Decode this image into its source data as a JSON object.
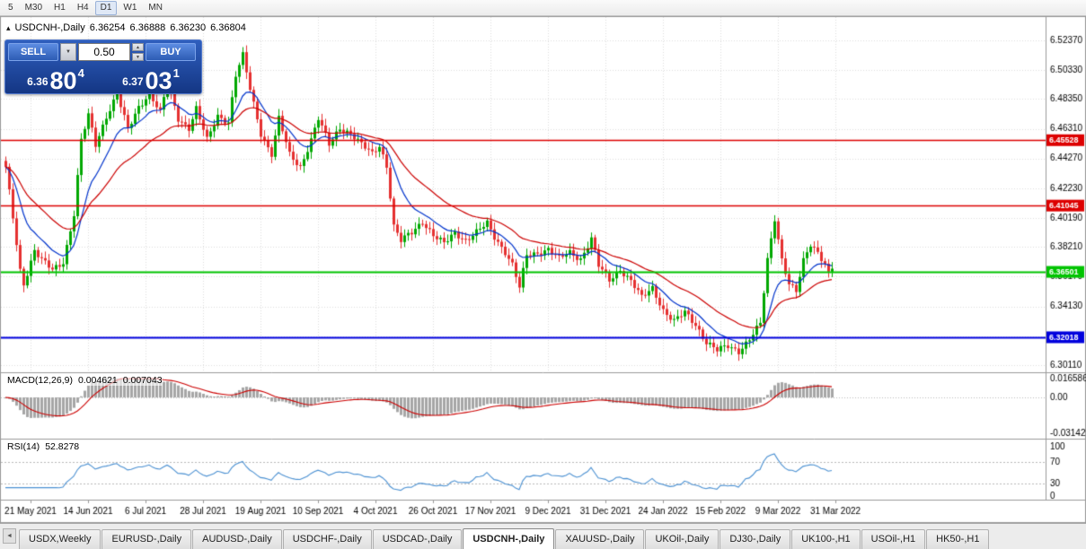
{
  "toolbar": {
    "periods": [
      {
        "label": "5",
        "active": false
      },
      {
        "label": "M30",
        "active": false
      },
      {
        "label": "H1",
        "active": false
      },
      {
        "label": "H4",
        "active": false
      },
      {
        "label": "D1",
        "active": true
      },
      {
        "label": "W1",
        "active": false
      },
      {
        "label": "MN",
        "active": false
      }
    ]
  },
  "chart_header": {
    "toggle_icon": "▴",
    "symbol": "USDCNH-,Daily",
    "open": "6.36254",
    "high": "6.36888",
    "low": "6.36230",
    "close": "6.36804"
  },
  "trade_panel": {
    "sell_label": "SELL",
    "buy_label": "BUY",
    "lot": "0.50",
    "dropdown_icon": "▼",
    "spin_up": "▲",
    "spin_down": "▼",
    "sell_small": "6.36",
    "sell_big": "80",
    "sell_sup": "4",
    "buy_small": "6.37",
    "buy_big": "03",
    "buy_sup": "1"
  },
  "panes": {
    "macd_name": "MACD(12,26,9)",
    "macd_value1": "0.004621",
    "macd_value2": "0.007043",
    "rsi_name": "RSI(14)",
    "rsi_value": "52.8278"
  },
  "tabs": {
    "scroll_left": "◄",
    "items": [
      {
        "label": "USDX,Weekly",
        "active": false
      },
      {
        "label": "EURUSD-,Daily",
        "active": false
      },
      {
        "label": "AUDUSD-,Daily",
        "active": false
      },
      {
        "label": "USDCHF-,Daily",
        "active": false
      },
      {
        "label": "USDCAD-,Daily",
        "active": false
      },
      {
        "label": "USDCNH-,Daily",
        "active": true
      },
      {
        "label": "XAUUSD-,Daily",
        "active": false
      },
      {
        "label": "UKOil-,Daily",
        "active": false
      },
      {
        "label": "DJ30-,Daily",
        "active": false
      },
      {
        "label": "UK100-,H1",
        "active": false
      },
      {
        "label": "USOil-,H1",
        "active": false
      },
      {
        "label": "HK50-,H1",
        "active": false
      }
    ]
  },
  "chart_data": {
    "type": "candlestick",
    "symbol": "USDCNH-",
    "timeframe": "Daily",
    "ohlc_current": {
      "open": 6.36254,
      "high": 6.36888,
      "low": 6.3623,
      "close": 6.36804
    },
    "price_axis": [
      "6.52370",
      "6.50330",
      "6.48350",
      "6.46310",
      "6.44270",
      "6.42230",
      "6.40190",
      "6.38210",
      "6.36170",
      "6.34130",
      "6.32090",
      "6.30110"
    ],
    "price_top": 6.5237,
    "price_bottom": 6.3011,
    "date_labels": [
      "21 May 2021",
      "14 Jun 2021",
      "6 Jul 2021",
      "28 Jul 2021",
      "19 Aug 2021",
      "10 Sep 2021",
      "4 Oct 2021",
      "26 Oct 2021",
      "17 Nov 2021",
      "9 Dec 2021",
      "31 Dec 2021",
      "24 Jan 2022",
      "15 Feb 2022",
      "9 Mar 2022",
      "31 Mar 2022"
    ],
    "label_start": 7,
    "label_every": 16,
    "candle_count": 231,
    "spacing": 4,
    "anchors": [
      [
        0,
        6.436
      ],
      [
        2,
        6.402
      ],
      [
        4,
        6.366
      ],
      [
        5,
        6.357
      ],
      [
        8,
        6.38
      ],
      [
        10,
        6.373
      ],
      [
        13,
        6.366
      ],
      [
        16,
        6.372
      ],
      [
        19,
        6.405
      ],
      [
        21,
        6.455
      ],
      [
        23,
        6.472
      ],
      [
        25,
        6.452
      ],
      [
        28,
        6.472
      ],
      [
        31,
        6.487
      ],
      [
        34,
        6.462
      ],
      [
        37,
        6.478
      ],
      [
        40,
        6.488
      ],
      [
        43,
        6.474
      ],
      [
        45,
        6.494
      ],
      [
        48,
        6.47
      ],
      [
        51,
        6.464
      ],
      [
        53,
        6.477
      ],
      [
        56,
        6.455
      ],
      [
        59,
        6.472
      ],
      [
        62,
        6.468
      ],
      [
        64,
        6.5
      ],
      [
        66,
        6.513
      ],
      [
        68,
        6.49
      ],
      [
        71,
        6.46
      ],
      [
        74,
        6.446
      ],
      [
        76,
        6.47
      ],
      [
        79,
        6.445
      ],
      [
        82,
        6.437
      ],
      [
        85,
        6.456
      ],
      [
        87,
        6.47
      ],
      [
        90,
        6.452
      ],
      [
        93,
        6.464
      ],
      [
        96,
        6.46
      ],
      [
        99,
        6.452
      ],
      [
        102,
        6.446
      ],
      [
        104,
        6.452
      ],
      [
        106,
        6.438
      ],
      [
        108,
        6.396
      ],
      [
        110,
        6.386
      ],
      [
        113,
        6.392
      ],
      [
        116,
        6.4
      ],
      [
        119,
        6.39
      ],
      [
        122,
        6.384
      ],
      [
        125,
        6.392
      ],
      [
        128,
        6.387
      ],
      [
        131,
        6.392
      ],
      [
        134,
        6.398
      ],
      [
        136,
        6.389
      ],
      [
        139,
        6.379
      ],
      [
        141,
        6.37
      ],
      [
        143,
        6.354
      ],
      [
        145,
        6.376
      ],
      [
        148,
        6.378
      ],
      [
        151,
        6.381
      ],
      [
        154,
        6.374
      ],
      [
        157,
        6.378
      ],
      [
        160,
        6.374
      ],
      [
        163,
        6.388
      ],
      [
        165,
        6.369
      ],
      [
        168,
        6.359
      ],
      [
        171,
        6.367
      ],
      [
        174,
        6.359
      ],
      [
        177,
        6.347
      ],
      [
        180,
        6.354
      ],
      [
        183,
        6.339
      ],
      [
        186,
        6.331
      ],
      [
        189,
        6.337
      ],
      [
        192,
        6.329
      ],
      [
        195,
        6.317
      ],
      [
        198,
        6.311
      ],
      [
        201,
        6.314
      ],
      [
        204,
        6.311
      ],
      [
        207,
        6.319
      ],
      [
        210,
        6.329
      ],
      [
        212,
        6.373
      ],
      [
        214,
        6.402
      ],
      [
        216,
        6.374
      ],
      [
        218,
        6.357
      ],
      [
        220,
        6.351
      ],
      [
        222,
        6.372
      ],
      [
        224,
        6.384
      ],
      [
        226,
        6.379
      ],
      [
        228,
        6.371
      ],
      [
        229,
        6.364
      ],
      [
        230,
        6.368
      ]
    ],
    "hlines": [
      {
        "price": 6.45528,
        "label": "6.45528",
        "color": "#dd0000",
        "width": 1.5
      },
      {
        "price": 6.41045,
        "label": "6.41045",
        "color": "#dd0000",
        "width": 1.5
      },
      {
        "price": 6.36501,
        "label": "6.36501",
        "color": "#00c400",
        "width": 2
      },
      {
        "price": 6.32018,
        "label": "6.32018",
        "color": "#0000dd",
        "width": 2
      }
    ],
    "ma_fast_period": 12,
    "ma_slow_period": 30,
    "macd": {
      "fast": 12,
      "slow": 26,
      "signal_period": 9,
      "axis": [
        {
          "v": 0.016586,
          "label": "0.016586"
        },
        {
          "v": 0,
          "label": "0.00"
        },
        {
          "v": -0.031421,
          "label": "-0.031421"
        }
      ],
      "axis_max": 0.016586,
      "axis_min": -0.031421
    },
    "rsi": {
      "period": 14,
      "levels": [
        70,
        30
      ],
      "axis": [
        {
          "v": 100,
          "label": "100"
        },
        {
          "v": 70,
          "label": "70"
        },
        {
          "v": 30,
          "label": "30"
        },
        {
          "v": 0,
          "label": "0"
        }
      ]
    },
    "colors": {
      "up": "#00a800",
      "down": "#e53030",
      "ma_fast": "#0033cc",
      "ma_slow": "#cc0000",
      "grid": "#dcdcdc",
      "hist": "#a6a6a6",
      "macd_signal": "#cc0000",
      "rsi_line": "#4a90d2",
      "axis_text": "#000000",
      "separator": "#9a9a9a"
    }
  }
}
